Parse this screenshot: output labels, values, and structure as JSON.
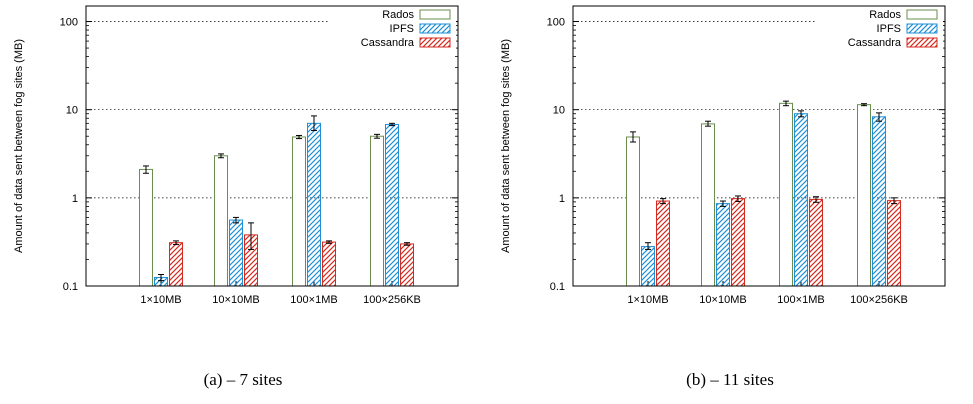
{
  "chart_data": [
    {
      "type": "bar",
      "caption": "(a) – 7 sites",
      "ylabel": "Amount of data sent between fog sites (MB)",
      "yscale": "log",
      "ylim": [
        0.1,
        150
      ],
      "yticks": [
        "0.1",
        "1",
        "10",
        "100"
      ],
      "grid": "horizontal dotted",
      "legend_position": "top-right",
      "categories": [
        "1×10MB",
        "10×10MB",
        "100×1MB",
        "100×256KB"
      ],
      "series": [
        {
          "name": "Rados",
          "color": "#6b8e4e",
          "pattern": "none",
          "values": [
            2.1,
            3.0,
            4.9,
            5.0
          ],
          "errors": [
            [
              1.9,
              2.3
            ],
            [
              2.85,
              3.15
            ],
            [
              4.7,
              5.1
            ],
            [
              4.75,
              5.25
            ]
          ]
        },
        {
          "name": "IPFS",
          "color": "#1f8fd6",
          "pattern": "hatch",
          "values": [
            0.125,
            0.56,
            7.0,
            6.8
          ],
          "errors": [
            [
              0.115,
              0.135
            ],
            [
              0.52,
              0.6
            ],
            [
              5.8,
              8.5
            ],
            [
              6.6,
              7.0
            ]
          ]
        },
        {
          "name": "Cassandra",
          "color": "#d62a1f",
          "pattern": "hatch",
          "values": [
            0.31,
            0.38,
            0.315,
            0.3
          ],
          "errors": [
            [
              0.295,
              0.325
            ],
            [
              0.26,
              0.52
            ],
            [
              0.305,
              0.325
            ],
            [
              0.29,
              0.31
            ]
          ]
        }
      ]
    },
    {
      "type": "bar",
      "caption": "(b) – 11 sites",
      "ylabel": "Amount of data sent between fog sites (MB)",
      "yscale": "log",
      "ylim": [
        0.1,
        150
      ],
      "yticks": [
        "0.1",
        "1",
        "10",
        "100"
      ],
      "grid": "horizontal dotted",
      "legend_position": "top-right",
      "categories": [
        "1×10MB",
        "10×10MB",
        "100×1MB",
        "100×256KB"
      ],
      "series": [
        {
          "name": "Rados",
          "color": "#6b8e4e",
          "pattern": "none",
          "values": [
            4.9,
            6.9,
            11.8,
            11.4
          ],
          "errors": [
            [
              4.3,
              5.6
            ],
            [
              6.5,
              7.4
            ],
            [
              11.1,
              12.5
            ],
            [
              11.1,
              11.7
            ]
          ]
        },
        {
          "name": "IPFS",
          "color": "#1f8fd6",
          "pattern": "hatch",
          "values": [
            0.28,
            0.86,
            9.0,
            8.3
          ],
          "errors": [
            [
              0.26,
              0.31
            ],
            [
              0.8,
              0.92
            ],
            [
              8.3,
              9.7
            ],
            [
              7.4,
              9.2
            ]
          ]
        },
        {
          "name": "Cassandra",
          "color": "#d62a1f",
          "pattern": "hatch",
          "values": [
            0.92,
            0.98,
            0.96,
            0.93
          ],
          "errors": [
            [
              0.86,
              0.98
            ],
            [
              0.91,
              1.05
            ],
            [
              0.89,
              1.03
            ],
            [
              0.86,
              1.0
            ]
          ]
        }
      ]
    }
  ]
}
